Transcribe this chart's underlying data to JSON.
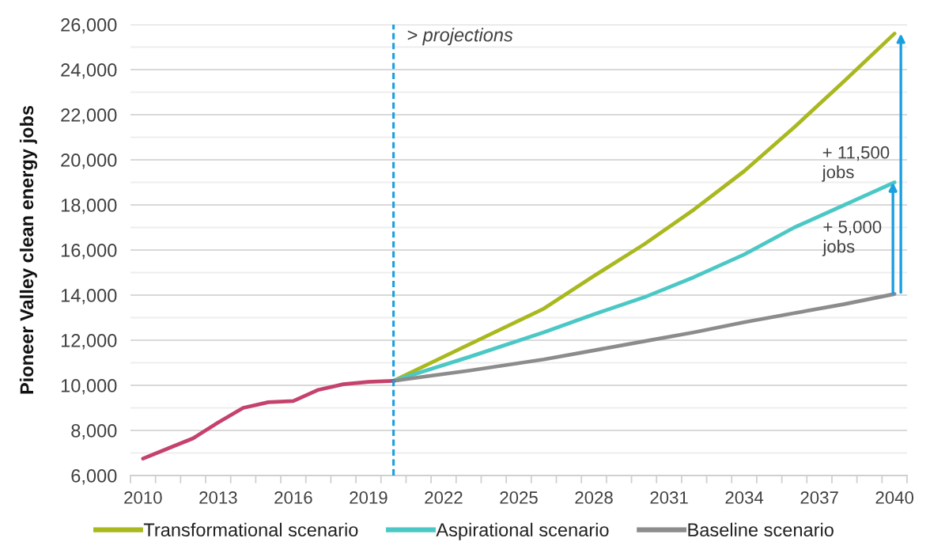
{
  "chart_data": {
    "type": "line",
    "ylabel": "Pioneer Valley clean energy jobs",
    "xlim": [
      2009.5,
      2040.5
    ],
    "xticks": [
      2010,
      2013,
      2016,
      2019,
      2022,
      2025,
      2028,
      2031,
      2034,
      2037,
      2040,
      {
        "value": 2009.5,
        "label": null
      },
      {
        "value": 2010.5,
        "label": null
      },
      {
        "value": 2011.5,
        "label": null
      },
      {
        "value": 2012.5,
        "label": null
      },
      {
        "value": 2013.5,
        "label": null
      },
      {
        "value": 2014.5,
        "label": null
      },
      {
        "value": 2015.5,
        "label": null
      },
      {
        "value": 2016.5,
        "label": null
      },
      {
        "value": 2017.5,
        "label": null
      },
      {
        "value": 2018.5,
        "label": null
      },
      {
        "value": 2019.5,
        "label": null
      },
      {
        "value": 2020.5,
        "label": null
      },
      {
        "value": 2021.5,
        "label": null
      },
      {
        "value": 2022.5,
        "label": null
      },
      {
        "value": 2023.5,
        "label": null
      },
      {
        "value": 2024.5,
        "label": null
      },
      {
        "value": 2025.5,
        "label": null
      },
      {
        "value": 2026.5,
        "label": null
      },
      {
        "value": 2027.5,
        "label": null
      },
      {
        "value": 2028.5,
        "label": null
      },
      {
        "value": 2029.5,
        "label": null
      },
      {
        "value": 2030.5,
        "label": null
      },
      {
        "value": 2031.5,
        "label": null
      },
      {
        "value": 2032.5,
        "label": null
      },
      {
        "value": 2033.5,
        "label": null
      },
      {
        "value": 2034.5,
        "label": null
      },
      {
        "value": 2035.5,
        "label": null
      },
      {
        "value": 2036.5,
        "label": null
      },
      {
        "value": 2037.5,
        "label": null
      },
      {
        "value": 2038.5,
        "label": null
      },
      {
        "value": 2039.5,
        "label": null
      },
      {
        "value": 2040.5,
        "label": null
      }
    ],
    "ylim": [
      6000,
      26000
    ],
    "yticks": [
      {
        "value": 6000,
        "label": "6,000"
      },
      {
        "value": 8000,
        "label": "8,000"
      },
      {
        "value": 10000,
        "label": "10,000"
      },
      {
        "value": 12000,
        "label": "12,000"
      },
      {
        "value": 14000,
        "label": "14,000"
      },
      {
        "value": 16000,
        "label": "16,000"
      },
      {
        "value": 18000,
        "label": "18,000"
      },
      {
        "value": 20000,
        "label": "20,000"
      },
      {
        "value": 22000,
        "label": "22,000"
      },
      {
        "value": 24000,
        "label": "24,000"
      },
      {
        "value": 26000,
        "label": "26,000"
      },
      {
        "value": 7000,
        "label": null
      },
      {
        "value": 9000,
        "label": null
      },
      {
        "value": 11000,
        "label": null
      },
      {
        "value": 13000,
        "label": null
      },
      {
        "value": 15000,
        "label": null
      },
      {
        "value": 17000,
        "label": null
      },
      {
        "value": 19000,
        "label": null
      },
      {
        "value": 21000,
        "label": null
      },
      {
        "value": 23000,
        "label": null
      },
      {
        "value": 25000,
        "label": null
      }
    ],
    "grid": "y",
    "legend": "bottom",
    "series": [
      {
        "name": "Transformational scenario",
        "color": "#a9b81f",
        "x": [
          2020,
          2023,
          2026,
          2028,
          2030,
          2032,
          2034,
          2036,
          2038,
          2040
        ],
        "values": [
          10200,
          11800,
          13400,
          14850,
          16250,
          17800,
          19500,
          21450,
          23500,
          25600
        ]
      },
      {
        "name": "Aspirational scenario",
        "color": "#4bc8c5",
        "x": [
          2020,
          2023,
          2026,
          2028,
          2030,
          2032,
          2034,
          2036,
          2038,
          2040
        ],
        "values": [
          10200,
          11250,
          12350,
          13150,
          13900,
          14800,
          15800,
          17000,
          18000,
          19000
        ]
      },
      {
        "name": "Baseline scenario",
        "color": "#8c8c8c",
        "x": [
          2020,
          2023,
          2026,
          2028,
          2030,
          2032,
          2034,
          2036,
          2038,
          2040
        ],
        "values": [
          10200,
          10650,
          11150,
          11550,
          11950,
          12350,
          12800,
          13200,
          13600,
          14050
        ]
      },
      {
        "color": "#c4426c",
        "x": [
          2010,
          2011,
          2012,
          2013,
          2014,
          2015,
          2016,
          2017,
          2018,
          2019,
          2020
        ],
        "values": [
          6750,
          7200,
          7650,
          8350,
          9000,
          9250,
          9300,
          9800,
          10050,
          10150,
          10200
        ]
      }
    ],
    "ref_lines": [
      {
        "axis": "x",
        "value": 2020,
        "label": "> projections",
        "color": "#1a9fe0",
        "line_style": "dashed"
      }
    ],
    "annotations": [
      "+ 11,500\njobs",
      "+ 5,000\njobs"
    ]
  }
}
